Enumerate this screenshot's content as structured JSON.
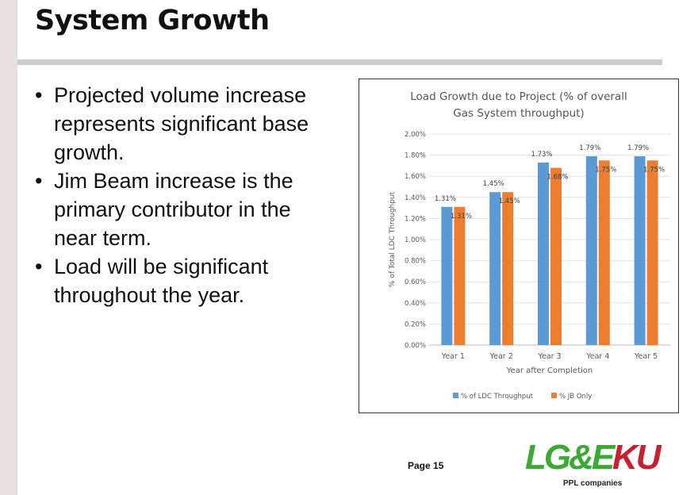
{
  "slide": {
    "title": "System Growth",
    "bullets": [
      "Projected volume increase represents significant base growth.",
      "Jim Beam increase is the primary contributor in the near term.",
      "Load will be significant throughout the year."
    ],
    "page_label": "Page 15",
    "logos": {
      "lge": "LG&E",
      "ku": "KU",
      "ppl": "PPL companies"
    }
  },
  "chart_data": {
    "type": "bar",
    "title_lines": [
      "Load Growth due to Project (% of overall",
      "Gas System throughput)"
    ],
    "xlabel": "Year after Completion",
    "ylabel": "% of Total LDC Throughput",
    "categories": [
      "Year 1",
      "Year 2",
      "Year 3",
      "Year 4",
      "Year 5"
    ],
    "ylim": [
      0,
      2.0
    ],
    "yticks": [
      "0.00%",
      "0.20%",
      "0.40%",
      "0.60%",
      "0.80%",
      "1.00%",
      "1.20%",
      "1.40%",
      "1.60%",
      "1.80%",
      "2.00%"
    ],
    "grid": true,
    "legend_position": "bottom",
    "series": [
      {
        "name": "% of LDC Throughput",
        "color": "#5b9bd5",
        "values": [
          1.31,
          1.45,
          1.73,
          1.79,
          1.79
        ],
        "labels": [
          "1.31%",
          "1.45%",
          "1.73%",
          "1.79%",
          "1.79%"
        ]
      },
      {
        "name": "% JB Only",
        "color": "#ed7d31",
        "values": [
          1.31,
          1.45,
          1.68,
          1.75,
          1.75
        ],
        "labels": [
          "1.31%",
          "1.45%",
          "1.68%",
          "1.75%",
          "1.75%"
        ]
      }
    ]
  }
}
